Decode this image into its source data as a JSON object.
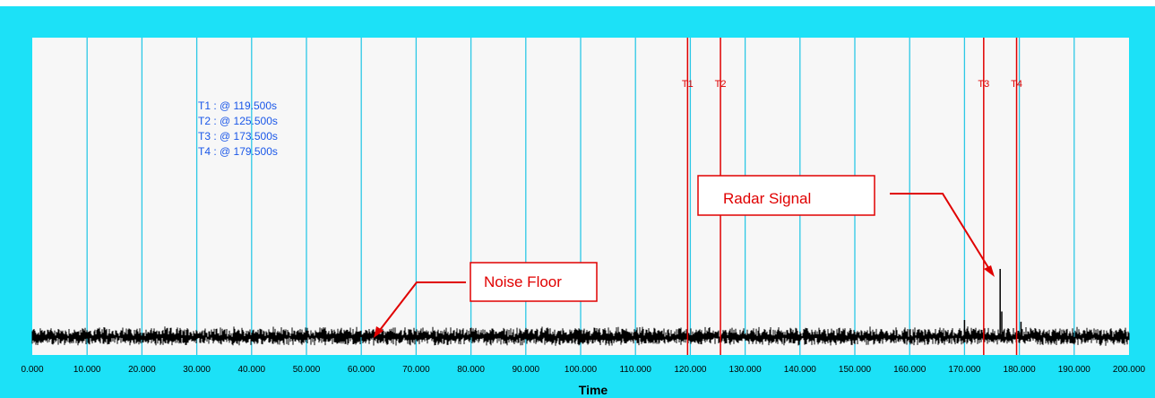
{
  "chart_data": {
    "type": "line",
    "title": "",
    "xlabel": "Time",
    "ylabel": "",
    "xlim": [
      0,
      200
    ],
    "x_ticks": [
      "0.000",
      "10.000",
      "20.000",
      "30.000",
      "40.000",
      "50.000",
      "60.000",
      "70.000",
      "80.000",
      "90.000",
      "100.000",
      "110.000",
      "120.000",
      "130.000",
      "140.000",
      "150.000",
      "160.000",
      "170.000",
      "180.000",
      "190.000",
      "200.000"
    ],
    "grid": "vertical",
    "series": [
      {
        "type": "noise",
        "x_range": [
          0,
          200
        ],
        "spike_x": [
          170.0,
          176.5,
          176.8,
          180.3
        ],
        "spike_rel_height": [
          0.2,
          0.8,
          0.3,
          0.18
        ]
      }
    ],
    "cursors": [
      {
        "label": "T1",
        "x": 119.5
      },
      {
        "label": "T2",
        "x": 125.5
      },
      {
        "label": "T3",
        "x": 173.5
      },
      {
        "label": "T4",
        "x": 179.5
      }
    ],
    "readouts": [
      "T1 : @ 119.500s",
      "T2 : @ 125.500s",
      "T3 : @ 173.500s",
      "T4 : @ 179.500s"
    ],
    "annotations": [
      {
        "text": "Noise Floor",
        "points_to": "noise floor near 62s"
      },
      {
        "text": "Radar Signal",
        "points_to": "spike near 176.5s"
      }
    ]
  },
  "colors": {
    "frame": "#1ce1f7",
    "plot_bg": "#f7f7f7",
    "grid": "#2bc8e6",
    "cursor": "#e00000",
    "readout": "#1a57e8",
    "signal": "#000000"
  }
}
